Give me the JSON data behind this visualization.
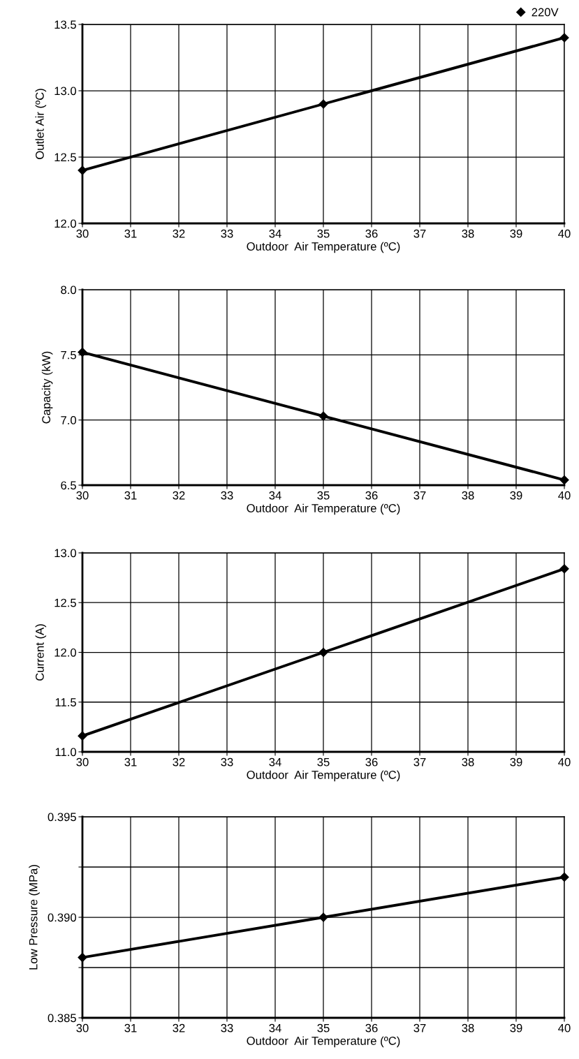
{
  "chart_data": [
    {
      "type": "line",
      "ylabel": "Outlet Air (ºC)",
      "xlabel": "Outdoor  Air Temperature (ºC)",
      "x": [
        30,
        35,
        40
      ],
      "series": [
        {
          "name": "220V",
          "color": "#000000",
          "values": [
            12.4,
            12.9,
            13.4
          ]
        }
      ],
      "xlim": [
        30,
        40
      ],
      "xticks": [
        30,
        31,
        32,
        33,
        34,
        35,
        36,
        37,
        38,
        39,
        40
      ],
      "ylim": [
        12.0,
        13.5
      ],
      "yticks": [
        {
          "value": 12.0,
          "label": "12.0"
        },
        {
          "value": 12.5,
          "label": "12.5"
        },
        {
          "value": 13.0,
          "label": "13.0"
        },
        {
          "value": 13.5,
          "label": "13.5"
        }
      ],
      "grid": true,
      "marker": "diamond",
      "line_style": "solid",
      "legend": "top right"
    },
    {
      "type": "line",
      "ylabel": "Capacity (kW)",
      "xlabel": "Outdoor  Air Temperature (ºC)",
      "x": [
        30,
        35,
        40
      ],
      "series": [
        {
          "color": "#000000",
          "values": [
            7.52,
            7.03,
            6.54
          ]
        }
      ],
      "xlim": [
        30,
        40
      ],
      "xticks": [
        30,
        31,
        32,
        33,
        34,
        35,
        36,
        37,
        38,
        39,
        40
      ],
      "ylim": [
        6.5,
        8.0
      ],
      "yticks": [
        6.5,
        {
          "value": 7.0,
          "label": "7.0"
        },
        7.5,
        {
          "value": 8.0,
          "label": "8.0"
        }
      ],
      "grid": true,
      "marker": "diamond",
      "line_style": "solid"
    },
    {
      "type": "line",
      "ylabel": "Current (A)",
      "xlabel": "Outdoor  Air Temperature (ºC)",
      "x": [
        30,
        35,
        40
      ],
      "series": [
        {
          "color": "#000000",
          "values": [
            11.16,
            12.0,
            12.84
          ]
        }
      ],
      "xlim": [
        30,
        40
      ],
      "xticks": [
        30,
        31,
        32,
        33,
        34,
        35,
        36,
        37,
        38,
        39,
        40
      ],
      "ylim": [
        11.0,
        13.0
      ],
      "yticks": [
        {
          "value": 11.0,
          "label": "11.0"
        },
        11.5,
        {
          "value": 12.0,
          "label": "12.0"
        },
        12.5,
        {
          "value": 13.0,
          "label": "13.0"
        }
      ],
      "grid": true,
      "marker": "diamond",
      "line_style": "solid"
    },
    {
      "type": "line",
      "ylabel": "Low Pressure (MPa)",
      "xlabel": "Outdoor  Air Temperature (ºC)",
      "x": [
        30,
        35,
        40
      ],
      "series": [
        {
          "color": "#000000",
          "values": [
            0.388,
            0.39,
            0.392
          ]
        }
      ],
      "xlim": [
        30,
        40
      ],
      "xticks": [
        30,
        31,
        32,
        33,
        34,
        35,
        36,
        37,
        38,
        39,
        40
      ],
      "ylim": [
        0.385,
        0.395
      ],
      "yticks": [
        0.385,
        {
          "value": 0.3875,
          "label": null
        },
        {
          "value": 0.39,
          "label": "0.390"
        },
        {
          "value": 0.3925,
          "label": null
        },
        0.395
      ],
      "grid": true,
      "marker": "diamond",
      "line_style": "solid"
    }
  ]
}
